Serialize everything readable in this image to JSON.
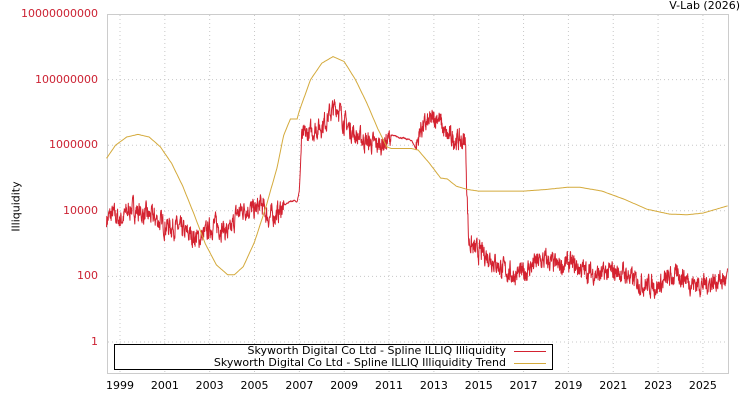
{
  "credit": "V-Lab (2026)",
  "chart_data": {
    "type": "line",
    "title": "",
    "xlabel": "",
    "ylabel": "Illiquidity",
    "yscale": "log",
    "ylim": [
      0.3,
      10000000000
    ],
    "xlim": [
      1998.4,
      2026.1
    ],
    "grid": true,
    "legend_position": "bottom",
    "y_ticks": [
      {
        "label": "10000000000",
        "value": 10000000000
      },
      {
        "label": "100000000",
        "value": 100000000
      },
      {
        "label": "1000000",
        "value": 1000000
      },
      {
        "label": "10000",
        "value": 10000
      },
      {
        "label": "100",
        "value": 100
      },
      {
        "label": "1",
        "value": 1
      }
    ],
    "x_ticks": [
      "1999",
      "2001",
      "2003",
      "2005",
      "2007",
      "2009",
      "2011",
      "2013",
      "2015",
      "2017",
      "2019",
      "2021",
      "2023",
      "2025"
    ],
    "series": [
      {
        "name": "Skyworth Digital Co Ltd - Spline ILLIQ Illiquidity",
        "color": "#d42230",
        "points_log10": [
          [
            1998.4,
            3.75
          ],
          [
            1998.7,
            3.9
          ],
          [
            1999.0,
            3.7
          ],
          [
            1999.5,
            4.1
          ],
          [
            2000.0,
            3.9
          ],
          [
            2000.5,
            3.8
          ],
          [
            2001.0,
            3.55
          ],
          [
            2001.5,
            3.5
          ],
          [
            2002.0,
            3.3
          ],
          [
            2002.5,
            3.15
          ],
          [
            2002.8,
            3.3
          ],
          [
            2003.2,
            3.6
          ],
          [
            2003.6,
            3.45
          ],
          [
            2003.9,
            3.3
          ],
          [
            2004.2,
            3.9
          ],
          [
            2004.6,
            4.1
          ],
          [
            2005.0,
            4.0
          ],
          [
            2005.3,
            4.2
          ],
          [
            2005.6,
            3.8
          ],
          [
            2006.0,
            3.9
          ],
          [
            2006.3,
            4.15
          ],
          [
            2006.6,
            4.3
          ],
          [
            2006.9,
            4.3
          ],
          [
            2007.0,
            4.6
          ],
          [
            2007.1,
            6.2
          ],
          [
            2007.5,
            6.4
          ],
          [
            2008.0,
            6.6
          ],
          [
            2008.4,
            7.0
          ],
          [
            2008.7,
            7.2
          ],
          [
            2009.0,
            6.7
          ],
          [
            2009.5,
            6.3
          ],
          [
            2010.0,
            6.1
          ],
          [
            2010.5,
            6.0
          ],
          [
            2010.9,
            6.1
          ],
          [
            2011.1,
            6.3
          ],
          [
            2012.0,
            6.15
          ],
          [
            2012.2,
            5.9
          ],
          [
            2012.4,
            6.5
          ],
          [
            2012.8,
            6.7
          ],
          [
            2013.2,
            6.9
          ],
          [
            2013.5,
            6.3
          ],
          [
            2013.9,
            6.2
          ],
          [
            2014.3,
            6.1
          ],
          [
            2014.4,
            6.2
          ],
          [
            2014.55,
            3.1
          ],
          [
            2014.8,
            2.8
          ],
          [
            2015.2,
            2.7
          ],
          [
            2015.5,
            2.6
          ],
          [
            2016.0,
            2.25
          ],
          [
            2016.5,
            2.05
          ],
          [
            2017.0,
            2.1
          ],
          [
            2017.5,
            2.4
          ],
          [
            2018.0,
            2.5
          ],
          [
            2018.5,
            2.3
          ],
          [
            2019.0,
            2.4
          ],
          [
            2019.5,
            2.25
          ],
          [
            2020.0,
            2.1
          ],
          [
            2020.5,
            2.05
          ],
          [
            2021.0,
            2.15
          ],
          [
            2021.5,
            2.1
          ],
          [
            2022.0,
            1.85
          ],
          [
            2022.5,
            1.75
          ],
          [
            2023.0,
            1.7
          ],
          [
            2023.5,
            1.95
          ],
          [
            2024.0,
            2.05
          ],
          [
            2024.5,
            1.8
          ],
          [
            2025.0,
            1.75
          ],
          [
            2025.5,
            1.85
          ],
          [
            2026.1,
            1.9
          ]
        ]
      },
      {
        "name": "Skyworth Digital Co Ltd - Spline ILLIQ Illiquidity Trend",
        "color": "#d4aa3c",
        "points_log10": [
          [
            1998.4,
            5.6
          ],
          [
            1998.8,
            6.0
          ],
          [
            1999.3,
            6.25
          ],
          [
            1999.8,
            6.33
          ],
          [
            2000.3,
            6.25
          ],
          [
            2000.8,
            5.95
          ],
          [
            2001.3,
            5.45
          ],
          [
            2001.8,
            4.75
          ],
          [
            2002.3,
            3.9
          ],
          [
            2002.8,
            3.0
          ],
          [
            2003.3,
            2.35
          ],
          [
            2003.8,
            2.05
          ],
          [
            2004.1,
            2.05
          ],
          [
            2004.5,
            2.3
          ],
          [
            2005.0,
            3.05
          ],
          [
            2005.5,
            4.1
          ],
          [
            2006.0,
            5.3
          ],
          [
            2006.3,
            6.3
          ],
          [
            2006.6,
            6.8
          ],
          [
            2006.9,
            6.8
          ],
          [
            2007.0,
            7.05
          ],
          [
            2007.5,
            8.0
          ],
          [
            2008.0,
            8.5
          ],
          [
            2008.5,
            8.7
          ],
          [
            2009.0,
            8.55
          ],
          [
            2009.5,
            8.0
          ],
          [
            2010.0,
            7.3
          ],
          [
            2010.5,
            6.5
          ],
          [
            2010.9,
            5.95
          ],
          [
            2011.1,
            5.9
          ],
          [
            2012.0,
            5.9
          ],
          [
            2012.3,
            5.85
          ],
          [
            2012.8,
            5.45
          ],
          [
            2013.3,
            5.0
          ],
          [
            2013.6,
            4.97
          ],
          [
            2014.0,
            4.75
          ],
          [
            2014.5,
            4.65
          ],
          [
            2015.0,
            4.6
          ],
          [
            2016.0,
            4.6
          ],
          [
            2017.0,
            4.6
          ],
          [
            2018.0,
            4.65
          ],
          [
            2019.0,
            4.72
          ],
          [
            2019.5,
            4.72
          ],
          [
            2020.5,
            4.6
          ],
          [
            2021.5,
            4.35
          ],
          [
            2022.5,
            4.05
          ],
          [
            2023.5,
            3.9
          ],
          [
            2024.3,
            3.88
          ],
          [
            2025.0,
            3.93
          ],
          [
            2026.1,
            4.15
          ]
        ]
      }
    ]
  },
  "legend": {
    "items": [
      {
        "label": "Skyworth Digital Co Ltd - Spline ILLIQ Illiquidity",
        "color": "#d42230"
      },
      {
        "label": "Skyworth Digital Co Ltd - Spline ILLIQ Illiquidity Trend",
        "color": "#d4aa3c"
      }
    ]
  }
}
